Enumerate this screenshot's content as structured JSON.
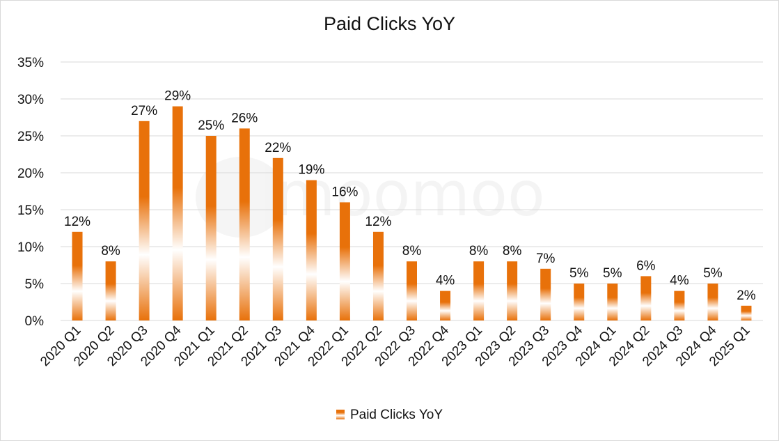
{
  "chart_data": {
    "type": "bar",
    "title": "Paid Clicks YoY",
    "categories": [
      "2020 Q1",
      "2020 Q2",
      "2020 Q3",
      "2020 Q4",
      "2021 Q1",
      "2021 Q2",
      "2021 Q3",
      "2021 Q4",
      "2022 Q1",
      "2022 Q2",
      "2022 Q3",
      "2022 Q4",
      "2023 Q1",
      "2023 Q2",
      "2023 Q3",
      "2023 Q4",
      "2024 Q1",
      "2024 Q2",
      "2024 Q3",
      "2024 Q4",
      "2025 Q1"
    ],
    "series": [
      {
        "name": "Paid Clicks YoY",
        "values": [
          12,
          8,
          27,
          29,
          25,
          26,
          22,
          19,
          16,
          12,
          8,
          4,
          8,
          8,
          7,
          5,
          5,
          6,
          4,
          5,
          2
        ],
        "data_labels": [
          "12%",
          "8%",
          "27%",
          "29%",
          "25%",
          "26%",
          "22%",
          "19%",
          "16%",
          "12%",
          "8%",
          "4%",
          "8%",
          "8%",
          "7%",
          "5%",
          "5%",
          "6%",
          "4%",
          "5%",
          "2%"
        ]
      }
    ],
    "ylim": [
      0,
      35
    ],
    "yticks": [
      0,
      5,
      10,
      15,
      20,
      25,
      30,
      35
    ],
    "ytick_labels": [
      "0%",
      "5%",
      "10%",
      "15%",
      "20%",
      "25%",
      "30%",
      "35%"
    ],
    "grid": true,
    "legend": "bottom",
    "colors": {
      "bar": "#e8710a",
      "grid": "#d9d9d9"
    },
    "watermark": "moomoo"
  }
}
